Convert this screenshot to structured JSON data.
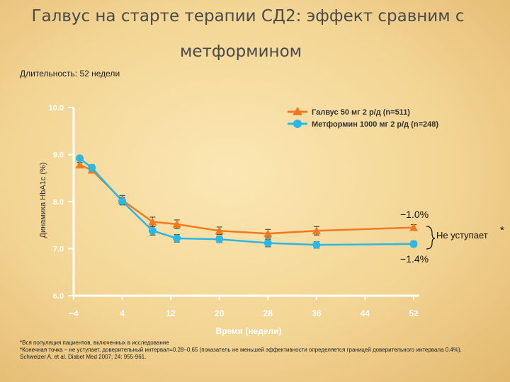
{
  "slide": {
    "title_line1": "Галвус на старте терапии СД2: эффект сравним с",
    "title_line2": "метформином",
    "duration": "Длительность: 52 недели"
  },
  "chart_data": {
    "type": "line",
    "xlabel": "Время (недели)",
    "ylabel": "Динамика HbA1c (%)",
    "x_ticks": [
      "−4",
      "4",
      "12",
      "20",
      "28",
      "36",
      "44",
      "52"
    ],
    "y_ticks": [
      "10.0",
      "9.0",
      "8.0",
      "7.0",
      "6.0"
    ],
    "xlim": [
      -4,
      52
    ],
    "ylim": [
      6.0,
      10.0
    ],
    "legend_position": "top-right",
    "series": [
      {
        "name": "Галвус 50 мг 2 р/д (n=511)",
        "color": "#ef7a22",
        "marker": "triangle",
        "x": [
          -3,
          -1,
          4,
          9,
          13,
          20,
          28,
          36,
          52
        ],
        "y": [
          8.78,
          8.67,
          8.03,
          7.57,
          7.52,
          7.38,
          7.32,
          7.38,
          7.45
        ],
        "err": [
          0.05,
          0.05,
          0.1,
          0.1,
          0.09,
          0.08,
          0.09,
          0.09,
          0.06
        ]
      },
      {
        "name": "Метформин 1000 мг 2 р/д (n=248)",
        "color": "#2ab8e6",
        "marker": "circle",
        "x": [
          -3,
          -1,
          4,
          9,
          13,
          20,
          28,
          36,
          52
        ],
        "y": [
          8.92,
          8.72,
          8.01,
          7.38,
          7.22,
          7.2,
          7.12,
          7.08,
          7.1
        ],
        "err": [
          0.05,
          0.06,
          0.08,
          0.09,
          0.08,
          0.07,
          0.08,
          0.07,
          0.06
        ]
      }
    ],
    "annotations": {
      "galvus_change": "−1.0%",
      "metformin_change": "−1.4%",
      "noninferior": "Не уступает",
      "noninferior_mark": "*"
    }
  },
  "footnotes": {
    "line1": "*Вся популяция пациентов, включенных в исследование",
    "line2": "*Конечная точка – не уступает, доверительный интервал=0.28–0.65 (показатель не меньшей эффективности определяется границей доверительного интервала 0.4%).",
    "line3": "Schweizer A, et al. Diabet Med 2007; 24: 955-961."
  }
}
